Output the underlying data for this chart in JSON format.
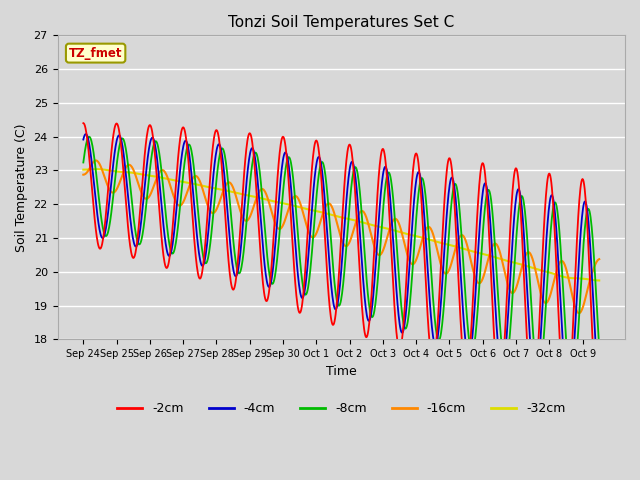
{
  "title": "Tonzi Soil Temperatures Set C",
  "xlabel": "Time",
  "ylabel": "Soil Temperature (C)",
  "ylim": [
    18.0,
    27.0
  ],
  "yticks": [
    18.0,
    19.0,
    20.0,
    21.0,
    22.0,
    23.0,
    24.0,
    25.0,
    26.0,
    27.0
  ],
  "xtick_labels": [
    "Sep 24",
    "Sep 25",
    "Sep 26",
    "Sep 27",
    "Sep 28",
    "Sep 29",
    "Sep 30",
    "Oct 1",
    "Oct 2",
    "Oct 3",
    "Oct 4",
    "Oct 5",
    "Oct 6",
    "Oct 7",
    "Oct 8",
    "Oct 9"
  ],
  "series_colors": [
    "#ff0000",
    "#0000cc",
    "#00bb00",
    "#ff8800",
    "#dddd00"
  ],
  "series_labels": [
    "-2cm",
    "-4cm",
    "-8cm",
    "-16cm",
    "-32cm"
  ],
  "annotation_text": "TZ_fmet",
  "annotation_bg": "#ffffcc",
  "annotation_border": "#999900",
  "bg_color": "#e0e0e0",
  "n_points": 960
}
